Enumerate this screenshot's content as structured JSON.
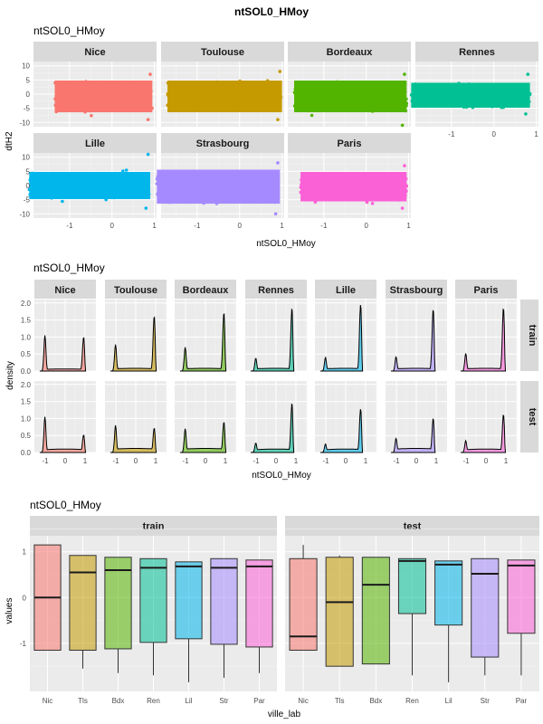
{
  "page_title": "ntSOL0_HMoy",
  "colors": {
    "Nice": "#F8766D",
    "Toulouse": "#C49A00",
    "Bordeaux": "#53B400",
    "Rennes": "#00C094",
    "Lille": "#00B6EB",
    "Strasbourg": "#A58AFF",
    "Paris": "#FB61D7",
    "panel_bg": "#EBEBEB",
    "strip_bg": "#D9D9D9",
    "grid": "#FFFFFF"
  },
  "chart_data": [
    {
      "type": "scatter",
      "title": "ntSOL0_HMoy",
      "xlabel": "ntSOL0_HMoy",
      "ylabel": "dtH2",
      "xlim": [
        -1.85,
        1.05
      ],
      "ylim": [
        -11.5,
        11.5
      ],
      "x_ticks": [
        -1,
        0,
        1
      ],
      "y_ticks": [
        10,
        5,
        0,
        -5,
        -10
      ],
      "grid": true,
      "facets": [
        {
          "name": "Nice",
          "x_range": [
            -1.35,
            0.95
          ],
          "y_band": [
            -8,
            6
          ],
          "y_extremes": [
            -9,
            7
          ]
        },
        {
          "name": "Toulouse",
          "x_range": [
            -1.7,
            1.0
          ],
          "y_band": [
            -8,
            6
          ],
          "y_extremes": [
            -9,
            8
          ]
        },
        {
          "name": "Bordeaux",
          "x_range": [
            -1.7,
            0.95
          ],
          "y_band": [
            -8,
            6
          ],
          "y_extremes": [
            -11,
            7
          ]
        },
        {
          "name": "Rennes",
          "x_range": [
            -1.95,
            0.85
          ],
          "y_band": [
            -6,
            5
          ],
          "y_extremes": [
            -7,
            7
          ]
        },
        {
          "name": "Lille",
          "x_range": [
            -1.95,
            0.9
          ],
          "y_band": [
            -6,
            6
          ],
          "y_extremes": [
            -8,
            11
          ]
        },
        {
          "name": "Strasbourg",
          "x_range": [
            -1.95,
            0.95
          ],
          "y_band": [
            -8,
            7
          ],
          "y_extremes": [
            -10,
            8
          ]
        },
        {
          "name": "Paris",
          "x_range": [
            -1.55,
            0.95
          ],
          "y_band": [
            -7,
            6
          ],
          "y_extremes": [
            -8,
            7
          ]
        }
      ]
    },
    {
      "type": "area",
      "title": "ntSOL0_HMoy",
      "xlabel": "ntSOL0_HMoy",
      "ylabel": "density",
      "xlim": [
        -1.55,
        1.55
      ],
      "ylim": [
        0,
        2.1
      ],
      "x_ticks": [
        -1,
        0,
        1
      ],
      "y_ticks": [
        0.0,
        0.5,
        1.0,
        1.5,
        2.0
      ],
      "grid": true,
      "rows": [
        "train",
        "test"
      ],
      "series": [
        {
          "name": "Nice",
          "train": {
            "left_peak": 1.05,
            "right_peak": 1.0,
            "trough": 0.06,
            "right_pos": 0.93
          },
          "test": {
            "left_peak": 1.05,
            "right_peak": 0.52,
            "trough": 0.1,
            "right_pos": 0.93
          }
        },
        {
          "name": "Toulouse",
          "train": {
            "left_peak": 0.78,
            "right_peak": 1.62,
            "trough": 0.08,
            "right_pos": 0.93
          },
          "test": {
            "left_peak": 0.8,
            "right_peak": 0.72,
            "trough": 0.12,
            "right_pos": 0.93
          }
        },
        {
          "name": "Bordeaux",
          "train": {
            "left_peak": 0.7,
            "right_peak": 1.72,
            "trough": 0.08,
            "right_pos": 0.93
          },
          "test": {
            "left_peak": 0.7,
            "right_peak": 0.9,
            "trough": 0.12,
            "right_pos": 0.93
          }
        },
        {
          "name": "Rennes",
          "train": {
            "left_peak": 0.38,
            "right_peak": 1.85,
            "trough": 0.08,
            "right_pos": 0.8
          },
          "test": {
            "left_peak": 0.28,
            "right_peak": 1.45,
            "trough": 0.1,
            "right_pos": 0.8
          }
        },
        {
          "name": "Lille",
          "train": {
            "left_peak": 0.4,
            "right_peak": 1.95,
            "trough": 0.08,
            "right_pos": 0.75
          },
          "test": {
            "left_peak": 0.25,
            "right_peak": 1.28,
            "trough": 0.1,
            "right_pos": 0.75
          }
        },
        {
          "name": "Strasbourg",
          "train": {
            "left_peak": 0.42,
            "right_peak": 1.82,
            "trough": 0.08,
            "right_pos": 0.85
          },
          "test": {
            "left_peak": 0.42,
            "right_peak": 1.0,
            "trough": 0.12,
            "right_pos": 0.85
          }
        },
        {
          "name": "Paris",
          "train": {
            "left_peak": 0.52,
            "right_peak": 1.86,
            "trough": 0.08,
            "right_pos": 0.88
          },
          "test": {
            "left_peak": 0.35,
            "right_peak": 1.12,
            "trough": 0.1,
            "right_pos": 0.88
          }
        }
      ]
    },
    {
      "type": "box",
      "title": "ntSOL0_HMoy",
      "xlabel": "ville_lab",
      "ylabel": "values",
      "ylim": [
        -2.05,
        1.35
      ],
      "y_ticks": [
        1,
        0,
        -1
      ],
      "grid": true,
      "categories": [
        "Nic",
        "Tls",
        "Bdx",
        "Ren",
        "Lil",
        "Str",
        "Par"
      ],
      "panels": [
        {
          "name": "train",
          "boxes": [
            {
              "min": -1.15,
              "q1": -1.15,
              "median": 0.0,
              "q3": 1.15,
              "max": 1.15
            },
            {
              "min": -1.55,
              "q1": -1.15,
              "median": 0.55,
              "q3": 0.92,
              "max": 0.92
            },
            {
              "min": -1.65,
              "q1": -1.12,
              "median": 0.6,
              "q3": 0.88,
              "max": 0.88
            },
            {
              "min": -1.7,
              "q1": -0.98,
              "median": 0.65,
              "q3": 0.85,
              "max": 0.85
            },
            {
              "min": -1.85,
              "q1": -0.9,
              "median": 0.68,
              "q3": 0.78,
              "max": 0.78
            },
            {
              "min": -1.75,
              "q1": -1.02,
              "median": 0.65,
              "q3": 0.85,
              "max": 0.85
            },
            {
              "min": -1.65,
              "q1": -1.08,
              "median": 0.68,
              "q3": 0.82,
              "max": 0.82
            }
          ]
        },
        {
          "name": "test",
          "boxes": [
            {
              "min": -1.15,
              "q1": -1.15,
              "median": -0.85,
              "q3": 0.85,
              "max": 1.15
            },
            {
              "min": -1.5,
              "q1": -1.5,
              "median": -0.1,
              "q3": 0.88,
              "max": 0.92
            },
            {
              "min": -1.45,
              "q1": -1.45,
              "median": 0.28,
              "q3": 0.88,
              "max": 0.88
            },
            {
              "min": -1.7,
              "q1": -0.35,
              "median": 0.8,
              "q3": 0.85,
              "max": 0.85
            },
            {
              "min": -1.85,
              "q1": -0.6,
              "median": 0.72,
              "q3": 0.8,
              "max": 0.8
            },
            {
              "min": -1.7,
              "q1": -1.3,
              "median": 0.52,
              "q3": 0.85,
              "max": 0.85
            },
            {
              "min": -1.7,
              "q1": -0.78,
              "median": 0.7,
              "q3": 0.82,
              "max": 0.82
            }
          ]
        }
      ]
    }
  ]
}
